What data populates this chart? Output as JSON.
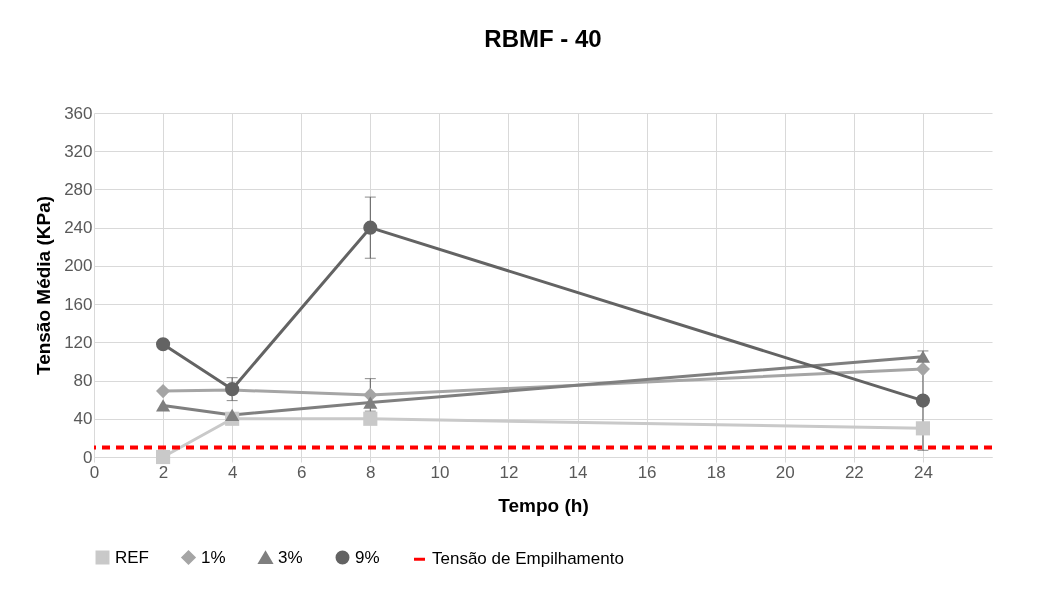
{
  "chart_data": {
    "type": "line",
    "title": "RBMF - 40",
    "xlabel": "Tempo (h)",
    "ylabel": "Tensão Média (KPa)",
    "x": [
      2,
      4,
      8,
      24
    ],
    "series": [
      {
        "name": "REF",
        "color": "#c9c9c9",
        "marker": "square",
        "values": [
          0,
          40,
          40,
          30
        ]
      },
      {
        "name": "1%",
        "color": "#a5a5a5",
        "marker": "diamond",
        "values": [
          69,
          70,
          65,
          92
        ],
        "errors": [
          null,
          null,
          17,
          null
        ]
      },
      {
        "name": "3%",
        "color": "#7f7f7f",
        "marker": "triangle",
        "values": [
          54,
          44,
          57,
          105
        ]
      },
      {
        "name": "9%",
        "color": "#636363",
        "marker": "circle",
        "values": [
          118,
          71,
          240,
          59
        ],
        "errors": [
          null,
          12,
          32,
          52
        ]
      }
    ],
    "ref_lines": [
      {
        "axis": "y",
        "value": 10,
        "label": "Tensão de Empilhamento",
        "color": "#ff0000",
        "line_style": "dashed"
      }
    ],
    "xlim": [
      0,
      26
    ],
    "xticks": [
      0,
      2,
      4,
      6,
      8,
      10,
      12,
      14,
      16,
      18,
      20,
      22,
      24
    ],
    "ylim": [
      0,
      360
    ],
    "yticks": [
      0,
      40,
      80,
      120,
      160,
      200,
      240,
      280,
      320,
      360
    ],
    "grid": true,
    "legend": "bottom"
  }
}
